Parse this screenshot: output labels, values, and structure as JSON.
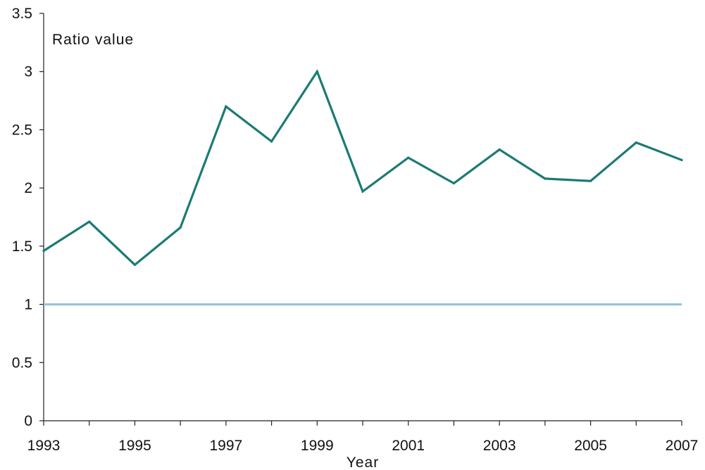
{
  "chart_data": {
    "type": "line",
    "title": "",
    "ylabel": "Ratio value",
    "xlabel": "Year",
    "x": [
      1993,
      1994,
      1995,
      1996,
      1997,
      1998,
      1999,
      2000,
      2001,
      2002,
      2003,
      2004,
      2005,
      2006,
      2007
    ],
    "xlim": [
      1993,
      2007
    ],
    "ylim": [
      0,
      3.5
    ],
    "x_ticks": [
      "1993",
      "1995",
      "1997",
      "1999",
      "2001",
      "2003",
      "2005",
      "2007"
    ],
    "y_ticks": [
      "0",
      "0.5",
      "1",
      "1.5",
      "2",
      "2.5",
      "3",
      "3.5"
    ],
    "grid": false,
    "series": [
      {
        "values": [
          1.46,
          1.71,
          1.34,
          1.66,
          2.7,
          2.4,
          3.0,
          1.97,
          2.26,
          2.04,
          2.33,
          2.08,
          2.06,
          2.39,
          2.24
        ],
        "color": "#1b7b74"
      }
    ],
    "reference_line": {
      "y": 1,
      "color": "#8ec3d9"
    }
  }
}
